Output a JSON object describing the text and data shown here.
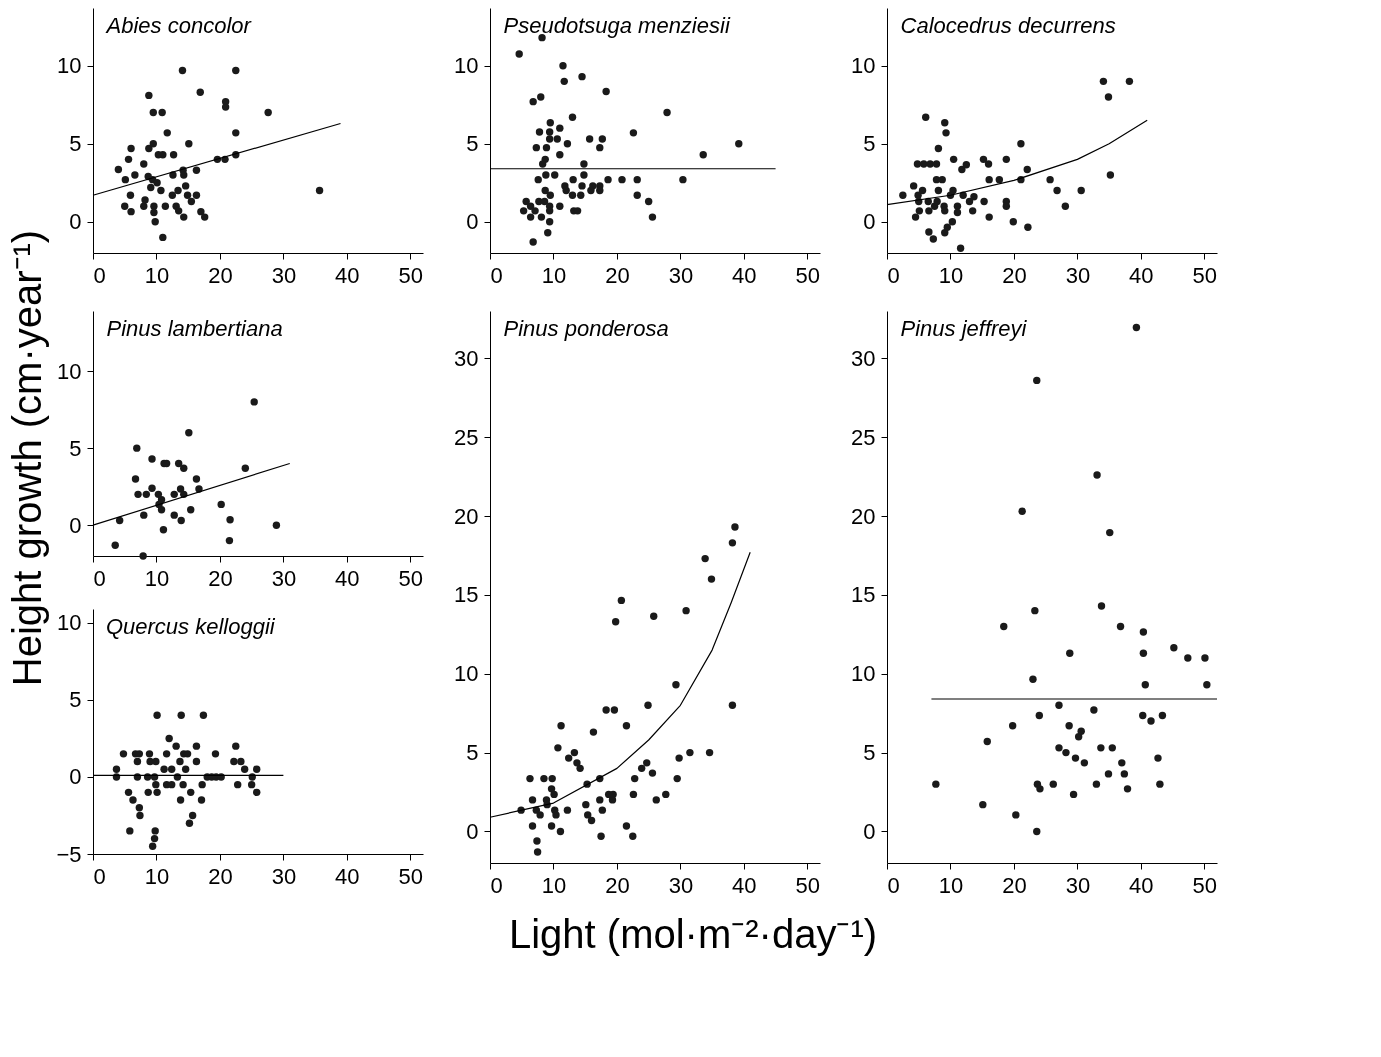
{
  "chart_data": [
    {
      "type": "scatter",
      "title": "Abies concolor",
      "ylabel": "Height growth (cm·year⁻¹)",
      "xlabel": "Light (mol·m⁻²·day⁻¹)",
      "xlim": [
        0,
        52
      ],
      "ylim": [
        -2,
        13.7
      ],
      "xticks": [
        0,
        10,
        20,
        30,
        40,
        50
      ],
      "yticks": [
        0,
        5,
        10
      ],
      "grid": false,
      "series": [
        {
          "type": "scatter",
          "marker": "circle",
          "color": "#1a1a1a",
          "x": [
            4.0,
            5.0,
            5.1,
            5.6,
            5.9,
            6.0,
            6.0,
            6.6,
            8.0,
            8.0,
            8.2,
            8.7,
            8.8,
            8.8,
            9.1,
            9.4,
            9.5,
            9.5,
            9.6,
            9.6,
            9.8,
            10.1,
            10.3,
            10.7,
            10.9,
            11.0,
            11.0,
            11.4,
            11.7,
            12.5,
            12.6,
            12.7,
            13.1,
            13.4,
            13.5,
            14.1,
            14.2,
            14.3,
            14.3,
            14.6,
            14.9,
            15.1,
            15.5,
            16.3,
            16.3,
            16.9,
            17.0,
            17.6,
            19.6,
            20.8,
            20.9,
            20.9,
            22.5,
            22.5,
            22.5,
            27.6,
            35.7
          ],
          "values": [
            3.35,
            1.0,
            2.7,
            4.0,
            1.7,
            4.7,
            0.65,
            3.0,
            3.7,
            1.0,
            1.4,
            2.9,
            8.1,
            4.7,
            2.2,
            2.7,
            5.0,
            7.0,
            1.0,
            0.6,
            0.0,
            2.5,
            4.3,
            2.0,
            7.0,
            4.3,
            -1.0,
            1.0,
            5.7,
            1.7,
            3.0,
            4.3,
            1.0,
            2.0,
            0.7,
            9.7,
            3.3,
            3.0,
            0.3,
            2.3,
            1.7,
            5.0,
            1.3,
            3.3,
            1.7,
            8.3,
            0.65,
            0.3,
            4.0,
            4.0,
            7.7,
            7.35,
            9.7,
            5.7,
            4.3,
            7.0,
            2.0
          ]
        },
        {
          "type": "line",
          "color": "#000000",
          "x": [
            0,
            39
          ],
          "values": [
            1.7,
            6.3
          ]
        }
      ]
    },
    {
      "type": "scatter",
      "title": "Pseudotsuga menziesii",
      "xlim": [
        0,
        52
      ],
      "ylim": [
        -2,
        13.7
      ],
      "xticks": [
        0,
        10,
        20,
        30,
        40,
        50
      ],
      "yticks": [
        0,
        5,
        10
      ],
      "grid": false,
      "series": [
        {
          "type": "scatter",
          "marker": "circle",
          "color": "#1a1a1a",
          "x": [
            4.6,
            8.2,
            6.8,
            8.0,
            11.5,
            11.7,
            14.5,
            18.3,
            13.0,
            9.5,
            11.0,
            7.8,
            9.4,
            9.4,
            10.6,
            7.3,
            8.9,
            12.2,
            11.0,
            8.7,
            8.3,
            14.8,
            15.7,
            17.7,
            17.3,
            22.6,
            27.9,
            33.6,
            39.2,
            7.6,
            8.8,
            10.2,
            13.1,
            14.8,
            11.8,
            12.0,
            14.5,
            15.9,
            16.2,
            17.3,
            17.3,
            18.6,
            20.8,
            23.2,
            30.4,
            8.7,
            9.5,
            13.0,
            14.3,
            23.2,
            25.0,
            5.7,
            5.3,
            6.4,
            7.1,
            7.7,
            8.6,
            9.4,
            9.4,
            11.0,
            13.2,
            13.8,
            6.4,
            8.1,
            9.4,
            9.1,
            6.8,
            25.6
          ],
          "values": [
            10.75,
            11.8,
            7.7,
            8.0,
            10.0,
            9.0,
            9.3,
            8.35,
            6.7,
            6.35,
            6.0,
            5.75,
            5.75,
            5.3,
            5.3,
            4.75,
            4.75,
            5.0,
            4.3,
            4.0,
            3.7,
            3.7,
            5.3,
            5.3,
            4.75,
            5.7,
            7.0,
            4.3,
            5.0,
            2.7,
            3.0,
            3.0,
            2.7,
            3.0,
            2.3,
            2.0,
            2.3,
            2.0,
            2.3,
            2.3,
            2.0,
            2.7,
            2.7,
            2.7,
            2.7,
            2.0,
            1.7,
            1.7,
            1.7,
            1.7,
            1.3,
            1.3,
            0.7,
            1.0,
            0.7,
            1.3,
            1.3,
            1.0,
            0.7,
            1.0,
            0.7,
            0.7,
            0.3,
            0.3,
            0.0,
            -0.7,
            -1.3,
            0.3
          ]
        },
        {
          "type": "line",
          "color": "#000000",
          "x": [
            0,
            45
          ],
          "values": [
            3.4,
            3.4
          ]
        }
      ]
    },
    {
      "type": "scatter",
      "title": "Calocedrus decurrens",
      "xlim": [
        0,
        52
      ],
      "ylim": [
        -2,
        13.7
      ],
      "xticks": [
        0,
        10,
        20,
        30,
        40,
        50
      ],
      "yticks": [
        0,
        5,
        10
      ],
      "grid": false,
      "series": [
        {
          "type": "scatter",
          "marker": "circle",
          "color": "#1a1a1a",
          "x": [
            2.5,
            4.2,
            4.5,
            4.8,
            4.9,
            5.0,
            5.1,
            5.6,
            5.8,
            6.1,
            6.5,
            6.6,
            6.6,
            6.8,
            7.3,
            7.5,
            7.8,
            7.8,
            7.9,
            8.1,
            8.1,
            8.7,
            9.0,
            9.1,
            9.1,
            9.3,
            9.1,
            9.5,
            10.3,
            10.5,
            10.4,
            10.0,
            11.1,
            11.1,
            11.6,
            11.8,
            12.5,
            12.0,
            13.0,
            13.5,
            13.7,
            15.2,
            15.3,
            16.0,
            16.1,
            16.1,
            17.7,
            18.8,
            18.8,
            18.8,
            19.9,
            21.1,
            21.1,
            22.1,
            22.2,
            25.7,
            26.8,
            28.1,
            30.6,
            34.1,
            34.9,
            35.2,
            38.2
          ],
          "values": [
            1.7,
            2.3,
            0.3,
            3.7,
            1.7,
            1.3,
            0.7,
            2.0,
            3.7,
            6.7,
            1.3,
            0.7,
            -0.65,
            3.7,
            -1.1,
            1.0,
            3.7,
            2.7,
            1.3,
            4.7,
            2.0,
            2.7,
            1.0,
            0.7,
            6.35,
            5.7,
            -0.7,
            -0.35,
            0.0,
            4.0,
            2.0,
            1.7,
            1.0,
            0.6,
            -1.7,
            3.35,
            3.65,
            1.7,
            1.3,
            0.7,
            1.6,
            4.0,
            1.3,
            3.7,
            2.7,
            0.3,
            2.7,
            4.0,
            1.3,
            1.0,
            0.0,
            5.0,
            2.7,
            3.35,
            -0.35,
            2.7,
            2.0,
            1.0,
            2.0,
            9.0,
            8.0,
            3.0,
            9.0
          ]
        },
        {
          "type": "line",
          "color": "#000000",
          "x": [
            0,
            10,
            20,
            30,
            35,
            41
          ],
          "values": [
            1.1,
            1.7,
            2.65,
            4.0,
            5.0,
            6.5
          ]
        }
      ]
    },
    {
      "type": "scatter",
      "title": "Pinus lambertiana",
      "xlim": [
        0,
        52
      ],
      "ylim": [
        -2,
        13.9
      ],
      "xticks": [
        0,
        10,
        20,
        30,
        40,
        50
      ],
      "yticks": [
        0,
        5,
        10
      ],
      "grid": false,
      "series": [
        {
          "type": "scatter",
          "marker": "circle",
          "color": "#1a1a1a",
          "x": [
            3.5,
            4.2,
            6.7,
            6.9,
            7.1,
            7.9,
            8.0,
            8.4,
            9.3,
            9.3,
            10.3,
            10.4,
            10.8,
            10.8,
            11.1,
            11.2,
            11.6,
            12.8,
            12.8,
            13.5,
            13.8,
            13.9,
            14.3,
            14.3,
            15.1,
            15.4,
            16.3,
            16.7,
            20.2,
            21.5,
            21.6,
            24.0,
            25.4,
            28.9
          ],
          "values": [
            -1.3,
            0.3,
            3.0,
            5.0,
            2.0,
            -2.0,
            0.65,
            2.0,
            2.4,
            4.3,
            2.0,
            1.35,
            1.0,
            1.65,
            -0.3,
            4.0,
            4.0,
            2.0,
            0.65,
            4.0,
            2.35,
            0.3,
            2.0,
            3.7,
            6.0,
            1.0,
            3.0,
            2.35,
            1.35,
            -1.0,
            0.35,
            3.7,
            8.0,
            0.0
          ]
        },
        {
          "type": "line",
          "color": "#000000",
          "x": [
            0,
            31
          ],
          "values": [
            0.0,
            4.0
          ]
        }
      ]
    },
    {
      "type": "scatter",
      "title": "Pinus ponderosa",
      "xlim": [
        0,
        52
      ],
      "ylim": [
        -2,
        33
      ],
      "xticks": [
        0,
        10,
        20,
        30,
        40,
        50
      ],
      "yticks": [
        0,
        5,
        10,
        15,
        20,
        25,
        30
      ],
      "grid": false,
      "series": [
        {
          "type": "scatter",
          "marker": "circle",
          "color": "#1a1a1a",
          "x": [
            4.9,
            6.3,
            6.7,
            6.7,
            7.3,
            7.4,
            7.5,
            7.9,
            8.5,
            8.9,
            9.0,
            9.7,
            9.8,
            9.7,
            10.1,
            10.2,
            10.4,
            10.7,
            11.1,
            11.2,
            12.2,
            12.4,
            13.3,
            13.7,
            14.2,
            15.1,
            15.3,
            15.4,
            16.0,
            16.3,
            17.3,
            17.3,
            17.5,
            17.7,
            18.3,
            18.7,
            19.3,
            19.4,
            19.6,
            19.8,
            20.7,
            21.5,
            21.5,
            22.5,
            22.6,
            22.8,
            23.9,
            24.7,
            24.9,
            25.6,
            25.8,
            26.2,
            27.7,
            29.3,
            29.5,
            29.8,
            30.9,
            31.5,
            33.9,
            34.6,
            34.9,
            38.2,
            38.2,
            38.6
          ],
          "values": [
            1.35,
            3.35,
            2.0,
            0.35,
            1.35,
            -0.6,
            -1.3,
            1.05,
            3.35,
            2.0,
            1.7,
            2.7,
            3.35,
            0.35,
            2.35,
            1.35,
            1.05,
            5.3,
            0.0,
            6.7,
            1.35,
            4.65,
            5.0,
            4.35,
            4.0,
            1.7,
            3.0,
            1.05,
            0.7,
            6.3,
            3.35,
            2.0,
            -0.3,
            1.35,
            7.7,
            2.35,
            2.0,
            2.35,
            7.7,
            13.3,
            14.65,
            6.7,
            0.35,
            -0.3,
            2.35,
            3.35,
            4.0,
            4.35,
            8.0,
            3.7,
            13.65,
            2.0,
            2.35,
            9.3,
            3.35,
            4.65,
            14.0,
            5.0,
            17.3,
            5.0,
            16.0,
            18.3,
            8.0,
            19.3
          ]
        },
        {
          "type": "line",
          "color": "#000000",
          "x": [
            0,
            10,
            20,
            25,
            30,
            35,
            38,
            41
          ],
          "values": [
            0.9,
            1.8,
            4.0,
            5.8,
            8.0,
            11.5,
            14.5,
            17.7
          ]
        }
      ]
    },
    {
      "type": "scatter",
      "title": "Pinus jeffreyi",
      "xlim": [
        0,
        52
      ],
      "ylim": [
        -2,
        33
      ],
      "xticks": [
        0,
        10,
        20,
        30,
        40,
        50
      ],
      "yticks": [
        0,
        5,
        10,
        15,
        20,
        25,
        30
      ],
      "grid": false,
      "series": [
        {
          "type": "scatter",
          "marker": "circle",
          "color": "#1a1a1a",
          "x": [
            7.7,
            15.1,
            15.8,
            18.4,
            19.8,
            20.3,
            21.3,
            23.0,
            23.3,
            23.6,
            23.6,
            23.7,
            24.1,
            24.0,
            26.2,
            27.1,
            27.1,
            28.2,
            28.7,
            28.8,
            29.4,
            29.7,
            30.2,
            30.6,
            31.1,
            32.6,
            33.0,
            33.1,
            33.7,
            33.8,
            34.9,
            35.1,
            35.5,
            36.8,
            37.0,
            37.4,
            37.9,
            39.3,
            40.3,
            40.4,
            40.4,
            40.7,
            41.6,
            42.7,
            43.0,
            43.4,
            45.2,
            47.4,
            50.1,
            50.4
          ],
          "values": [
            3.0,
            1.7,
            5.7,
            13.0,
            6.7,
            1.05,
            20.3,
            9.65,
            14.0,
            28.6,
            0.0,
            3.0,
            2.7,
            7.35,
            3.0,
            8.0,
            5.3,
            5.0,
            6.7,
            11.3,
            2.35,
            4.65,
            6.0,
            6.35,
            4.35,
            7.7,
            3.0,
            22.6,
            5.3,
            14.3,
            3.65,
            18.95,
            5.3,
            13.0,
            4.35,
            3.65,
            2.7,
            31.95,
            7.35,
            12.65,
            11.3,
            9.3,
            7.0,
            4.65,
            3.0,
            7.35,
            11.65,
            11.0,
            11.0,
            9.3
          ]
        },
        {
          "type": "line",
          "color": "#000000",
          "x": [
            7,
            52
          ],
          "values": [
            8.4,
            8.4
          ]
        }
      ]
    },
    {
      "type": "scatter",
      "title": "Quercus kelloggii",
      "xlim": [
        0,
        52
      ],
      "ylim": [
        -5,
        10.9
      ],
      "xticks": [
        0,
        10,
        20,
        30,
        40,
        50
      ],
      "yticks": [
        -5,
        0,
        5,
        10
      ],
      "grid": false,
      "series": [
        {
          "type": "scatter",
          "marker": "circle",
          "color": "#1a1a1a",
          "x": [
            3.7,
            3.7,
            4.8,
            5.6,
            5.8,
            6.3,
            6.7,
            7.0,
            7.0,
            7.3,
            7.3,
            7.4,
            8.6,
            8.7,
            8.9,
            9.0,
            9.4,
            9.7,
            9.8,
            9.7,
            9.9,
            9.9,
            10.1,
            10.1,
            11.2,
            11.6,
            11.6,
            12.0,
            12.4,
            12.4,
            13.1,
            13.3,
            13.7,
            13.8,
            13.9,
            14.2,
            14.3,
            14.6,
            14.9,
            15.2,
            15.7,
            15.4,
            16.3,
            16.3,
            17.1,
            17.2,
            17.4,
            18.0,
            18.7,
            19.3,
            19.4,
            20.2,
            22.2,
            22.5,
            22.8,
            23.3,
            23.9,
            25.0,
            25.1,
            25.8,
            25.8
          ],
          "values": [
            0.5,
            0.0,
            1.5,
            -1.0,
            -3.5,
            -1.5,
            1.5,
            1.0,
            0.0,
            1.5,
            -2.0,
            -2.5,
            0.0,
            -1.0,
            1.5,
            1.0,
            -4.5,
            -4.0,
            -3.5,
            0.0,
            -0.5,
            1.0,
            -1.0,
            4.0,
            0.5,
            1.5,
            -0.5,
            2.5,
            0.5,
            -0.5,
            2.0,
            0.0,
            1.0,
            -1.5,
            4.0,
            -0.5,
            1.5,
            0.5,
            1.5,
            -3.0,
            -2.5,
            -1.0,
            2.0,
            1.0,
            -1.5,
            -0.5,
            4.0,
            0.0,
            0.0,
            1.5,
            0.0,
            0.0,
            1.0,
            2.0,
            -0.5,
            1.0,
            0.5,
            -0.5,
            0.0,
            0.5,
            -1.0
          ]
        },
        {
          "type": "line",
          "color": "#000000",
          "x": [
            0,
            30
          ],
          "values": [
            0.1,
            0.1
          ]
        }
      ]
    }
  ]
}
